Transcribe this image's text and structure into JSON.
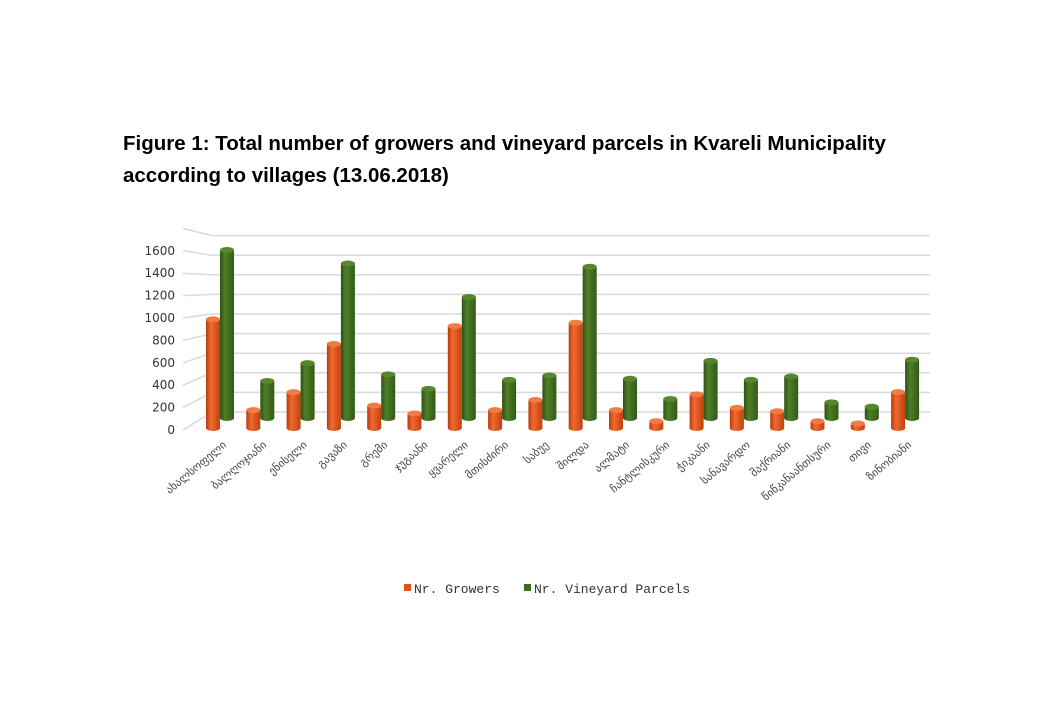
{
  "chart_data": {
    "type": "bar",
    "title": "Figure 1: Total number of growers and vineyard parcels in Kvareli Municipality according to villages (13.06.2018)",
    "categories": [
      "ახალსოფელი",
      "ბალღოჯიანი",
      "ენისელი",
      "გავაზი",
      "გრემი",
      "ჯუგაანი",
      "ყვარელი",
      "მთისძირი",
      "საბუე",
      "შილდა",
      "ალმატი",
      "ჩანტლისკური",
      "ჭიკაანი",
      "სანავარდო",
      "შაქრიანი",
      "წიწკანაანთსური",
      "თივი",
      "ზინობიანი"
    ],
    "series": [
      {
        "name": "Nr. Growers",
        "color": "#e0521c",
        "values": [
          970,
          160,
          320,
          750,
          200,
          130,
          910,
          160,
          250,
          940,
          160,
          60,
          300,
          180,
          150,
          60,
          40,
          320
        ]
      },
      {
        "name": "Nr. Vineyard Parcels",
        "color": "#3f6b1e",
        "values": [
          1500,
          330,
          490,
          1380,
          390,
          260,
          1080,
          340,
          380,
          1350,
          350,
          170,
          510,
          340,
          370,
          140,
          100,
          520
        ]
      }
    ],
    "yticks": [
      0,
      200,
      400,
      600,
      800,
      1000,
      1200,
      1400,
      1600
    ],
    "ylim": [
      0,
      1800
    ],
    "grid": true,
    "legend": "bottom",
    "style": "3d-cylinder"
  }
}
